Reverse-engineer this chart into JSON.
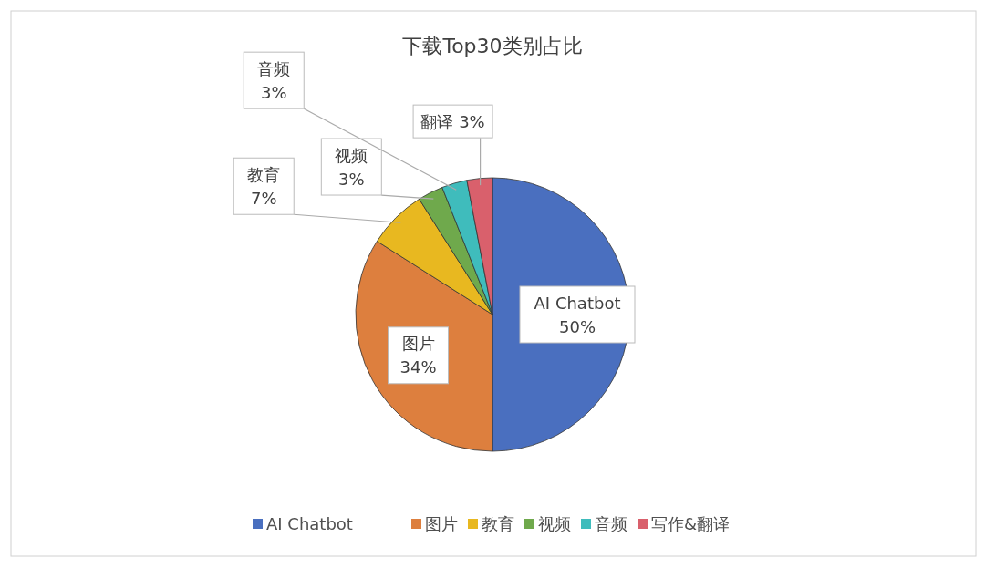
{
  "chart_data": {
    "type": "pie",
    "title": "下载Top30类别占比",
    "categories": [
      "AI Chatbot",
      "图片",
      "教育",
      "视频",
      "音频",
      "写作&翻译"
    ],
    "values": [
      50,
      34,
      7,
      3,
      3,
      3
    ],
    "colors": [
      "#4a6fbf",
      "#dd7f3e",
      "#e8b820",
      "#6fa94c",
      "#3fbcbc",
      "#d9606c"
    ],
    "value_labels": [
      "AI Chatbot\n50%",
      "图片\n34%",
      "教育\n7%",
      "视频\n3%",
      "音频\n3%",
      "翻译 3%"
    ],
    "legend": "bottom"
  }
}
